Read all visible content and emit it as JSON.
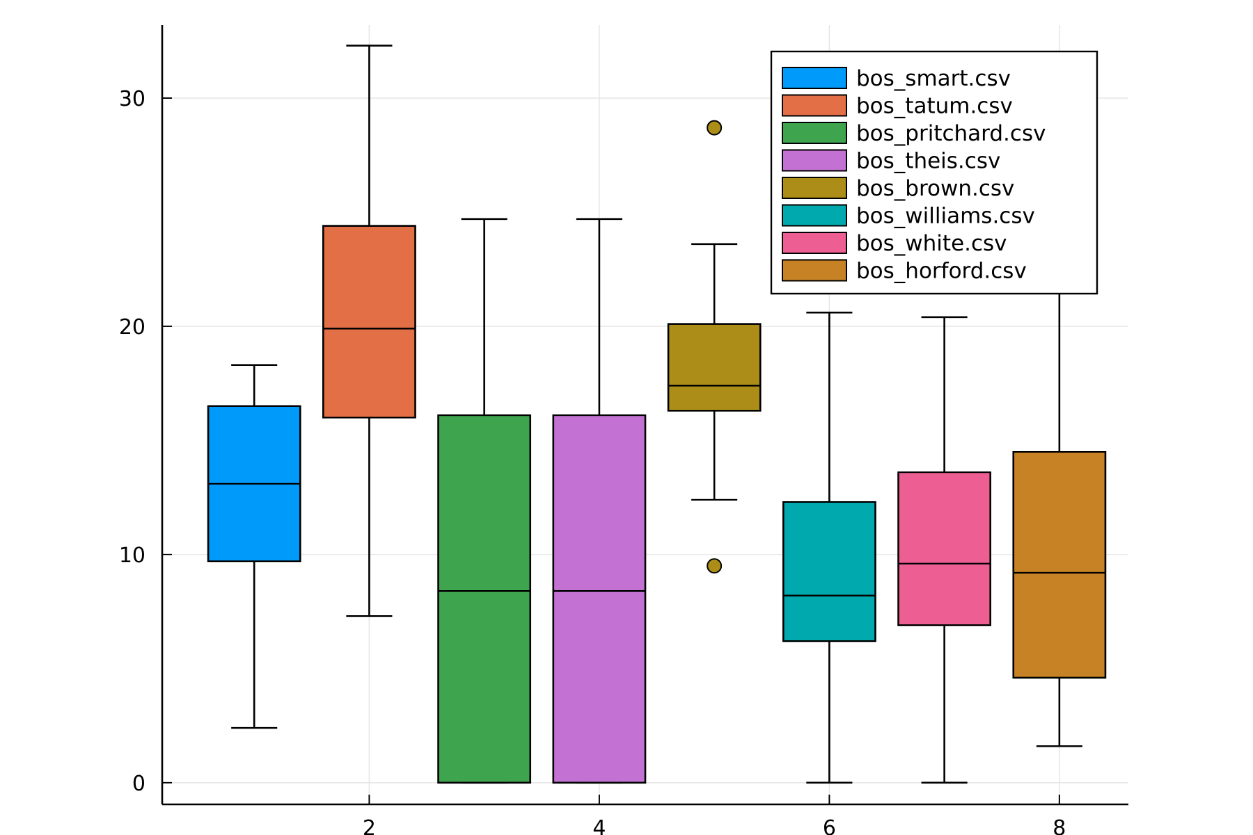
{
  "chart_data": {
    "type": "box",
    "title": "",
    "xlabel": "",
    "ylabel": "",
    "xlim": [
      0.2,
      8.6
    ],
    "ylim": [
      -0.95,
      33.2
    ],
    "x_ticks": [
      2,
      4,
      6,
      8
    ],
    "x_tick_labels": [
      "2",
      "4",
      "6",
      "8"
    ],
    "y_ticks": [
      0,
      10,
      20,
      30
    ],
    "y_tick_labels": [
      "0",
      "10",
      "20",
      "30"
    ],
    "grid": true,
    "legend_position": "top-right",
    "series": [
      {
        "name": "bos_smart.csv",
        "x": 1,
        "color": "#009AFA",
        "min": 2.4,
        "q1": 9.7,
        "median": 13.1,
        "q3": 16.5,
        "max": 18.3,
        "outliers": []
      },
      {
        "name": "bos_tatum.csv",
        "x": 2,
        "color": "#E36F47",
        "min": 7.3,
        "q1": 16.0,
        "median": 19.9,
        "q3": 24.4,
        "max": 32.3,
        "outliers": []
      },
      {
        "name": "bos_pritchard.csv",
        "x": 3,
        "color": "#3EA44E",
        "min": 0.0,
        "q1": 0.0,
        "median": 8.4,
        "q3": 16.1,
        "max": 24.7,
        "outliers": []
      },
      {
        "name": "bos_theis.csv",
        "x": 4,
        "color": "#C371D2",
        "min": 0.0,
        "q1": 0.0,
        "median": 8.4,
        "q3": 16.1,
        "max": 24.7,
        "outliers": []
      },
      {
        "name": "bos_brown.csv",
        "x": 5,
        "color": "#AC8D18",
        "min": 12.4,
        "q1": 16.3,
        "median": 17.4,
        "q3": 20.1,
        "max": 23.6,
        "outliers": [
          9.5,
          28.7
        ]
      },
      {
        "name": "bos_williams.csv",
        "x": 6,
        "color": "#00A9AD",
        "min": 0.0,
        "q1": 6.2,
        "median": 8.2,
        "q3": 12.3,
        "max": 20.6,
        "outliers": []
      },
      {
        "name": "bos_white.csv",
        "x": 7,
        "color": "#ED5E93",
        "min": 0.0,
        "q1": 6.9,
        "median": 9.6,
        "q3": 13.6,
        "max": 20.4,
        "outliers": []
      },
      {
        "name": "bos_horford.csv",
        "x": 8,
        "color": "#C68225",
        "min": 1.6,
        "q1": 4.6,
        "median": 9.2,
        "q3": 14.5,
        "max": 21.5,
        "outliers": []
      }
    ]
  }
}
